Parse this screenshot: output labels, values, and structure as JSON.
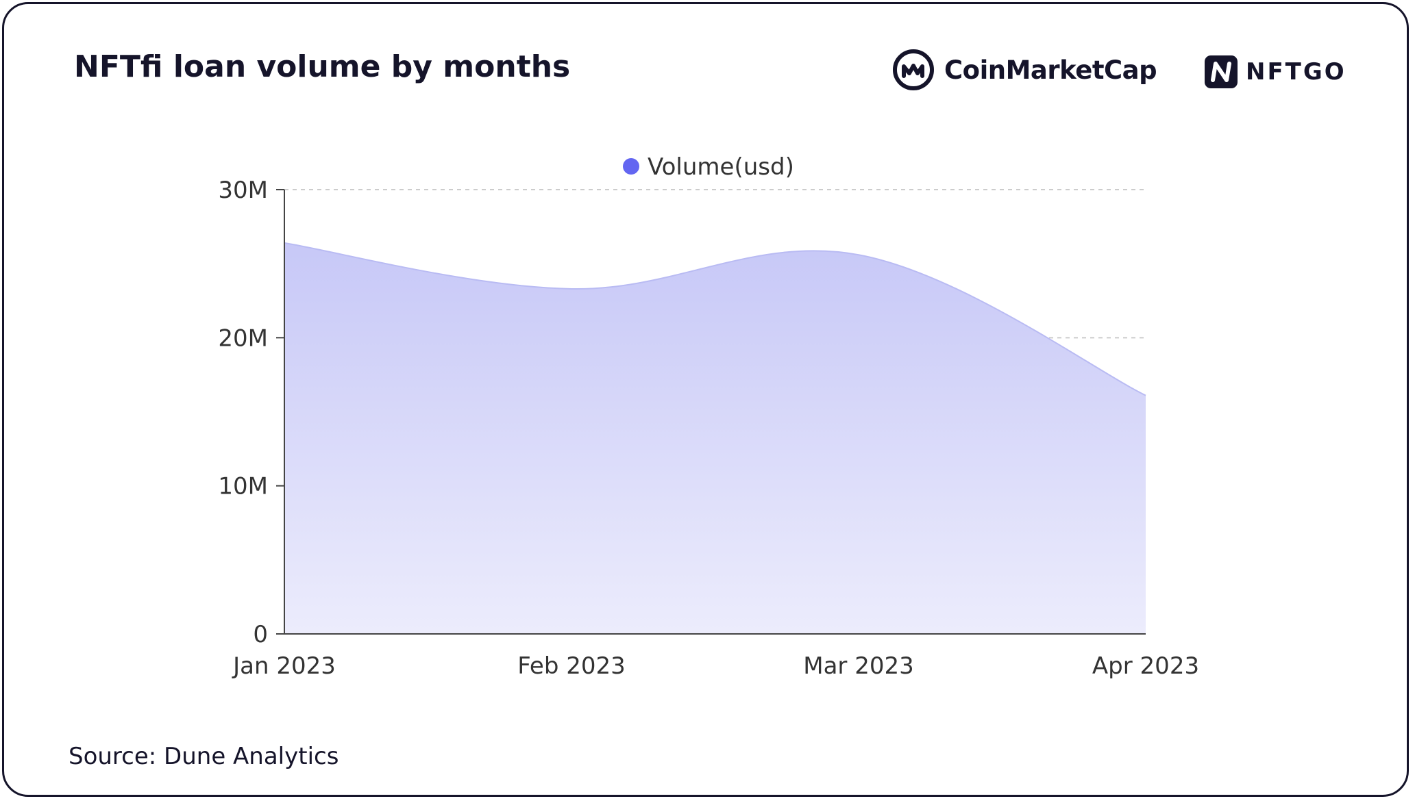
{
  "header": {
    "title": "NFTfi loan volume by months"
  },
  "brands": {
    "coinmarketcap": {
      "name": "CoinMarketCap",
      "icon": "coinmarketcap-logo-icon"
    },
    "nftgo": {
      "name": "NFTGO",
      "icon": "nftgo-logo-icon"
    }
  },
  "footer": {
    "source": "Source: Dune Analytics"
  },
  "colors": {
    "text": "#15142a",
    "series": "#6366f1",
    "area_top": "#c7c8f7",
    "area_bottom": "#ececfc",
    "grid": "#cccccc",
    "axis": "#444444"
  },
  "chart_data": {
    "type": "area",
    "title": "NFTfi loan volume by months",
    "xlabel": "",
    "ylabel": "",
    "categories": [
      "Jan 2023",
      "Feb 2023",
      "Mar 2023",
      "Apr 2023"
    ],
    "series": [
      {
        "name": "Volume(usd)",
        "values": [
          26400000,
          23300000,
          25600000,
          16100000
        ]
      }
    ],
    "ylim": [
      0,
      30000000
    ],
    "yticks": [
      0,
      10000000,
      20000000,
      30000000
    ],
    "ytick_labels": [
      "0",
      "10M",
      "20M",
      "30M"
    ],
    "grid": true,
    "legend": "top-center",
    "smooth": true
  }
}
